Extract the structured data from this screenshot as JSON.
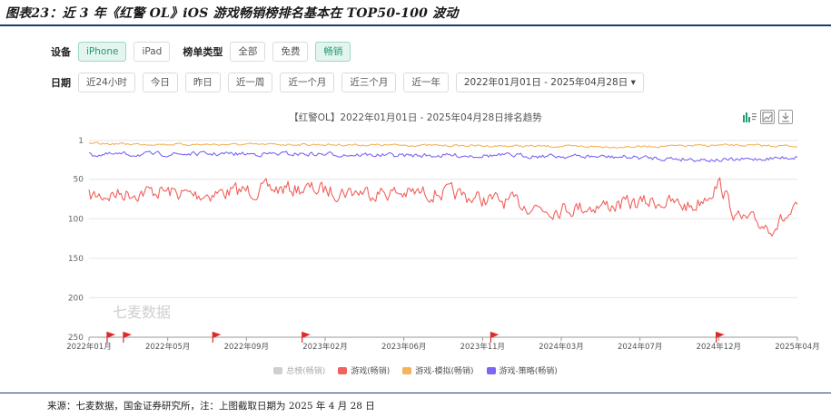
{
  "figure_title": "图表23：近 3 年《红警 OL》iOS 游戏畅销榜排名基本在 TOP50-100 波动",
  "filters": {
    "device_label": "设备",
    "devices": [
      "iPhone",
      "iPad"
    ],
    "device_selected": "iPhone",
    "list_type_label": "榜单类型",
    "list_types": [
      "全部",
      "免费",
      "畅销"
    ],
    "list_type_selected": "畅销",
    "date_label": "日期",
    "date_options": [
      "近24小时",
      "今日",
      "昨日",
      "近一周",
      "近一个月",
      "近三个月",
      "近一年"
    ],
    "date_range": "2022年01月01日 - 2025年04月28日 ▾"
  },
  "chart_title": "【红警OL】2022年01月01日 - 2025年04月28日排名趋势",
  "watermark": "七麦数据",
  "source": "来源：七麦数据，国金证券研究所，注：上图截取日期为 2025 年 4 月 28 日",
  "colors": {
    "green_accent": "#1f9c70",
    "total": "#cfcfcf",
    "game": "#f0625d",
    "sim": "#f5b35a",
    "strategy": "#7b66f5",
    "flag": "#e0292b"
  },
  "chart_data": {
    "type": "line",
    "title": "【红警OL】2022年01月01日 - 2025年04月28日排名趋势",
    "y_axis": {
      "inverted": true,
      "range": [
        1,
        250
      ],
      "ticks": [
        "1",
        "50",
        "100",
        "150",
        "200",
        "250"
      ]
    },
    "x_axis": {
      "range": [
        "2022-01-01",
        "2025-04-28"
      ],
      "ticks": [
        "2022年01月",
        "2022年05月",
        "2022年09月",
        "2023年02月",
        "2023年06月",
        "2023年11月",
        "2024年03月",
        "2024年07月",
        "2024年12月",
        "2025年04月"
      ]
    },
    "grid": true,
    "legend_position": "bottom",
    "series": [
      {
        "name": "总榜(畅销)",
        "color": "#cfcfcf",
        "values": []
      },
      {
        "name": "游戏(畅销)",
        "color": "#f0625d",
        "x": [
          "2022-01-01",
          "2022-03-01",
          "2022-05-01",
          "2022-07-01",
          "2022-09-01",
          "2022-11-01",
          "2023-01-01",
          "2023-03-01",
          "2023-05-01",
          "2023-07-01",
          "2023-09-01",
          "2023-11-01",
          "2024-01-01",
          "2024-03-01",
          "2024-05-01",
          "2024-07-01",
          "2024-09-01",
          "2024-11-01",
          "2024-12-15",
          "2025-01-15",
          "2025-02-15",
          "2025-03-15",
          "2025-04-28"
        ],
        "values": [
          72,
          68,
          65,
          70,
          66,
          63,
          62,
          65,
          66,
          68,
          67,
          75,
          80,
          88,
          85,
          82,
          78,
          85,
          55,
          100,
          105,
          110,
          90
        ]
      },
      {
        "name": "游戏-模拟(畅销)",
        "color": "#f5b35a",
        "x": [
          "2022-01-01",
          "2022-07-01",
          "2023-01-01",
          "2023-07-01",
          "2024-01-01",
          "2024-07-01",
          "2025-01-01",
          "2025-04-28"
        ],
        "values": [
          5,
          6,
          6,
          7,
          8,
          9,
          7,
          8
        ]
      },
      {
        "name": "游戏-策略(畅销)",
        "color": "#7b66f5",
        "x": [
          "2022-01-01",
          "2022-07-01",
          "2023-01-01",
          "2023-07-01",
          "2024-01-01",
          "2024-07-01",
          "2025-01-01",
          "2025-04-28"
        ],
        "values": [
          19,
          18,
          18,
          20,
          20,
          22,
          26,
          22
        ]
      }
    ],
    "markers": {
      "type": "flag",
      "dates": [
        "2022-02-01",
        "2022-03-01",
        "2022-08-01",
        "2023-01-01",
        "2023-11-20",
        "2024-12-10"
      ]
    }
  }
}
